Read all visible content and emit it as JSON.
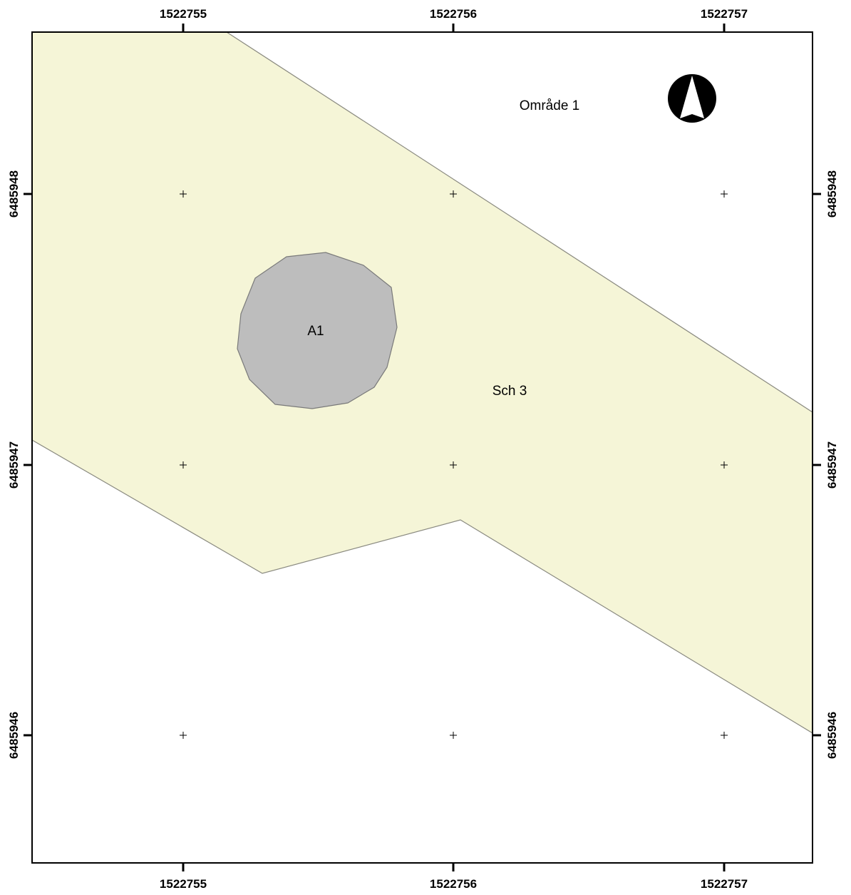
{
  "map": {
    "x_ticks": [
      "1522755",
      "1522756",
      "1522757"
    ],
    "y_ticks": [
      "6485948",
      "6485947",
      "6485946"
    ],
    "labels": {
      "area": "Område 1",
      "zone": "Sch 3",
      "object": "A1"
    },
    "colors": {
      "zone_fill": "#f5f5d7",
      "object_fill": "#bdbdbd",
      "outline": "#8a8a80",
      "frame": "#000000"
    },
    "north_arrow": "north-arrow-icon"
  }
}
